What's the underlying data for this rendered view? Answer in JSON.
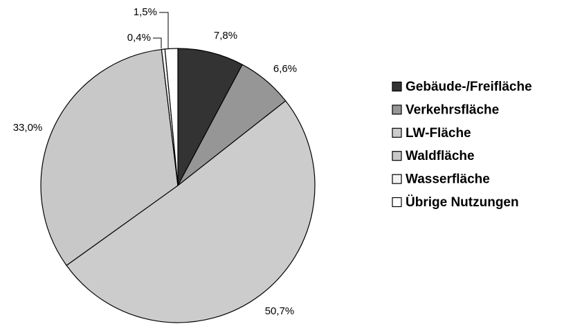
{
  "chart_data": {
    "type": "pie",
    "categories": [
      "Gebäude-/Freifläche",
      "Verkehrsfläche",
      "LW-Fläche",
      "Waldfläche",
      "Wasserfläche",
      "Übrige Nutzungen"
    ],
    "values": [
      7.8,
      6.6,
      50.7,
      33.0,
      0.4,
      1.5
    ],
    "value_labels": [
      "7,8%",
      "6,6%",
      "50,7%",
      "33,0%",
      "0,4%",
      "1,5%"
    ],
    "colors": [
      "#333333",
      "#969696",
      "#cccccc",
      "#c8c8c8",
      "#f2f2f2",
      "#ffffff"
    ]
  }
}
